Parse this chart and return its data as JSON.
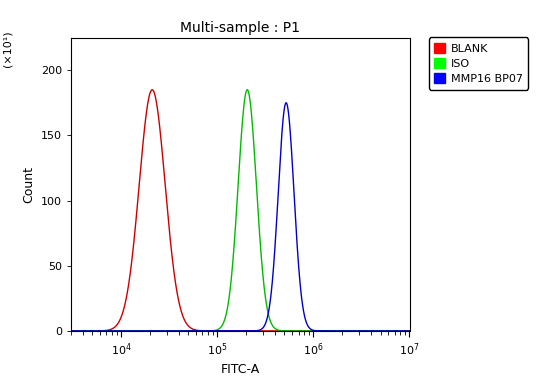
{
  "title": "Multi-sample : P1",
  "xlabel": "FITC-A",
  "ylabel": "Count",
  "ylabel_multiplier": "(×10¹)",
  "xlim": [
    3000,
    10000000.0
  ],
  "ylim": [
    0,
    225
  ],
  "yticks": [
    0,
    50,
    100,
    150,
    200
  ],
  "xtick_locs": [
    10000.0,
    100000.0,
    1000000.0,
    10000000.0
  ],
  "curves": [
    {
      "label": "BLANK",
      "color": "#cc0000",
      "peak_x": 21000.0,
      "peak_y": 185,
      "sigma_log": 0.135
    },
    {
      "label": "ISO",
      "color": "#00bb00",
      "peak_x": 205000.0,
      "peak_y": 185,
      "sigma_log": 0.095
    },
    {
      "label": "MMP16 BP07",
      "color": "#0000cc",
      "peak_x": 520000.0,
      "peak_y": 175,
      "sigma_log": 0.082
    }
  ],
  "background_color": "#ffffff",
  "legend_colors": [
    "#ff0000",
    "#00ff00",
    "#0000ff"
  ],
  "title_fontsize": 10,
  "axis_fontsize": 9,
  "tick_fontsize": 8,
  "legend_fontsize": 8
}
